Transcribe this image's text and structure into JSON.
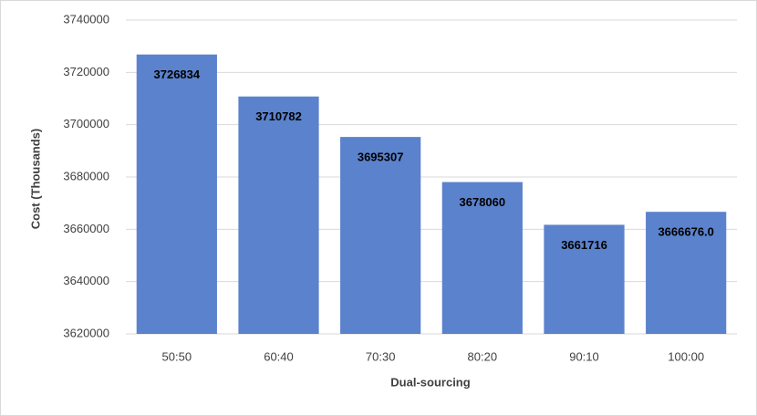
{
  "chart_data": {
    "type": "bar",
    "x_label": "Dual-sourcing",
    "y_label": "Cost (Thousands)",
    "categories": [
      "50:50",
      "60:40",
      "70:30",
      "80:20",
      "90:10",
      "100:00"
    ],
    "values": [
      3726834,
      3710782,
      3695307,
      3678060,
      3661716,
      3666676.0
    ],
    "value_labels": [
      "3726834",
      "3710782",
      "3695307",
      "3678060",
      "3661716",
      "3666676.0"
    ],
    "color": "#5b82cc",
    "ylim": [
      3620000,
      3740000
    ],
    "yticks": [
      3620000,
      3640000,
      3660000,
      3680000,
      3700000,
      3720000,
      3740000
    ],
    "grid": true
  }
}
